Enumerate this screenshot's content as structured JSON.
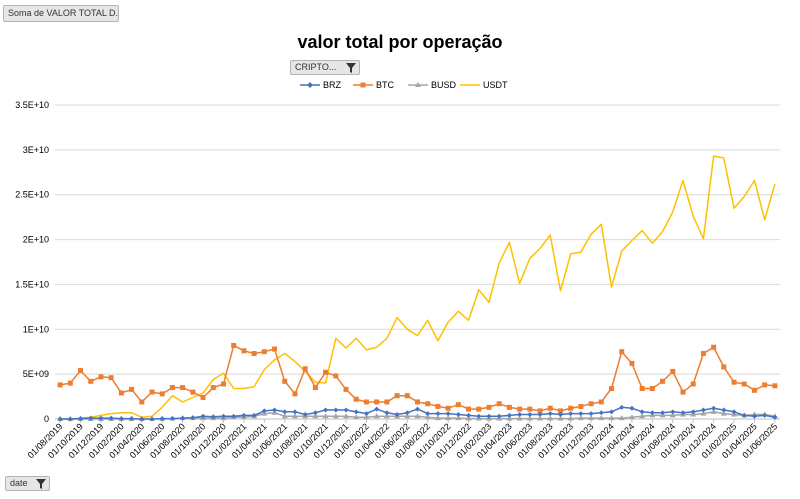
{
  "fields": {
    "value_field": "Soma de VALOR TOTAL D...",
    "series_field": "CRIPTO...",
    "axis_field": "date"
  },
  "colors": {
    "BRZ": "#4472C4",
    "BTC": "#ED7D31",
    "BUSD": "#A5A5A5",
    "USDT": "#FFC000",
    "grid": "#d9d9d9"
  },
  "chart_data": {
    "type": "line",
    "title": "valor total por operação",
    "xlabel": "",
    "ylabel": "",
    "ylim": [
      0,
      35000000000
    ],
    "y_ticks": [
      0,
      5000000000,
      10000000000,
      15000000000,
      20000000000,
      25000000000,
      30000000000,
      35000000000
    ],
    "y_tick_labels": [
      "0",
      "5E+09",
      "1E+10",
      "1.5E+10",
      "2E+10",
      "2.5E+10",
      "3E+10",
      "3.5E+10"
    ],
    "legend_position": "top",
    "categories": [
      "01/08/2019",
      "01/09/2019",
      "01/10/2019",
      "01/11/2019",
      "01/12/2019",
      "01/01/2020",
      "01/02/2020",
      "01/03/2020",
      "01/04/2020",
      "01/05/2020",
      "01/06/2020",
      "01/07/2020",
      "01/08/2020",
      "01/09/2020",
      "01/10/2020",
      "01/11/2020",
      "01/12/2020",
      "01/01/2021",
      "01/02/2021",
      "01/03/2021",
      "01/04/2021",
      "01/05/2021",
      "01/06/2021",
      "01/07/2021",
      "01/08/2021",
      "01/09/2021",
      "01/10/2021",
      "01/11/2021",
      "01/12/2021",
      "01/01/2022",
      "01/02/2022",
      "01/03/2022",
      "01/04/2022",
      "01/05/2022",
      "01/06/2022",
      "01/07/2022",
      "01/08/2022",
      "01/09/2022",
      "01/10/2022",
      "01/11/2022",
      "01/12/2022",
      "01/01/2023",
      "01/02/2023",
      "01/03/2023",
      "01/04/2023",
      "01/05/2023",
      "01/06/2023",
      "01/07/2023",
      "01/08/2023",
      "01/09/2023",
      "01/10/2023",
      "01/11/2023",
      "01/12/2023",
      "01/01/2024",
      "01/02/2024",
      "01/03/2024",
      "01/04/2024",
      "01/05/2024",
      "01/06/2024",
      "01/07/2024",
      "01/08/2024",
      "01/09/2024",
      "01/10/2024",
      "01/11/2024",
      "01/12/2024",
      "01/01/2025",
      "01/02/2025",
      "01/03/2025",
      "01/04/2025",
      "01/05/2025",
      "01/06/2025"
    ],
    "x_tick_labels": [
      "01/08/2019",
      "01/10/2019",
      "01/12/2019",
      "01/02/2020",
      "01/04/2020",
      "01/06/2020",
      "01/08/2020",
      "01/10/2020",
      "01/12/2020",
      "01/02/2021",
      "01/04/2021",
      "01/06/2021",
      "01/08/2021",
      "01/10/2021",
      "01/12/2021",
      "01/02/2022",
      "01/04/2022",
      "01/06/2022",
      "01/08/2022",
      "01/10/2022",
      "01/12/2022",
      "01/02/2023",
      "01/04/2023",
      "01/06/2023",
      "01/08/2023",
      "01/10/2023",
      "01/12/2023",
      "01/02/2024",
      "01/04/2024",
      "01/06/2024",
      "01/08/2024",
      "01/10/2024",
      "01/12/2024",
      "01/02/2025",
      "01/04/2025",
      "01/06/2025"
    ],
    "series": [
      {
        "name": "BRZ",
        "marker": "diamond",
        "values": [
          0.0,
          0.0,
          0.05,
          0.1,
          0.1,
          0.1,
          0.05,
          0.05,
          0.0,
          0.0,
          0.05,
          0.05,
          0.1,
          0.15,
          0.3,
          0.25,
          0.3,
          0.3,
          0.4,
          0.4,
          0.9,
          1.0,
          0.8,
          0.8,
          0.5,
          0.7,
          1.0,
          1.0,
          1.0,
          0.8,
          0.6,
          1.1,
          0.7,
          0.5,
          0.7,
          1.1,
          0.6,
          0.6,
          0.6,
          0.5,
          0.4,
          0.3,
          0.3,
          0.3,
          0.4,
          0.5,
          0.5,
          0.5,
          0.6,
          0.5,
          0.6,
          0.6,
          0.6,
          0.7,
          0.8,
          1.3,
          1.2,
          0.8,
          0.7,
          0.7,
          0.8,
          0.7,
          0.8,
          1.0,
          1.2,
          1.0,
          0.8,
          0.4,
          0.3,
          0.4,
          0.2
        ]
      },
      {
        "name": "BTC",
        "marker": "square",
        "values": [
          3.8,
          4.0,
          5.4,
          4.2,
          4.7,
          4.6,
          2.9,
          3.3,
          1.9,
          3.0,
          2.8,
          3.5,
          3.5,
          3.0,
          2.4,
          3.5,
          3.9,
          8.2,
          7.6,
          7.3,
          7.5,
          7.8,
          4.2,
          2.8,
          5.6,
          3.5,
          5.2,
          4.8,
          3.3,
          2.2,
          1.9,
          1.9,
          1.9,
          2.6,
          2.6,
          1.9,
          1.7,
          1.4,
          1.2,
          1.6,
          1.1,
          1.1,
          1.3,
          1.7,
          1.3,
          1.1,
          1.1,
          0.9,
          1.2,
          0.9,
          1.2,
          1.4,
          1.7,
          1.9,
          3.4,
          7.5,
          6.2,
          3.4,
          3.4,
          4.2,
          5.3,
          3.0,
          3.9,
          7.3,
          8.0,
          5.8,
          4.1,
          3.9,
          3.2,
          3.8,
          3.7
        ]
      },
      {
        "name": "BUSD",
        "marker": "triangle",
        "values": [
          0.0,
          0.0,
          0.0,
          0.0,
          0.0,
          0.0,
          0.0,
          0.0,
          0.0,
          0.0,
          0.0,
          0.05,
          0.1,
          0.1,
          0.1,
          0.1,
          0.1,
          0.2,
          0.2,
          0.3,
          0.6,
          0.7,
          0.3,
          0.3,
          0.3,
          0.3,
          0.3,
          0.3,
          0.3,
          0.2,
          0.2,
          0.3,
          0.3,
          0.3,
          0.3,
          0.3,
          0.2,
          0.1,
          0.1,
          0.1,
          0.05,
          0.05,
          0.05,
          0.05,
          0.05,
          0.05,
          0.05,
          0.05,
          0.05,
          0.05,
          0.05,
          0.1,
          0.1,
          0.1,
          0.1,
          0.1,
          0.2,
          0.3,
          0.4,
          0.4,
          0.4,
          0.5,
          0.5,
          0.6,
          0.8,
          0.6,
          0.5,
          0.4,
          0.5,
          0.5,
          0.3
        ]
      },
      {
        "name": "USDT",
        "marker": "none",
        "values": [
          0.0,
          0.0,
          0.1,
          0.2,
          0.4,
          0.6,
          0.7,
          0.7,
          0.2,
          0.3,
          1.3,
          2.6,
          1.9,
          2.4,
          2.9,
          4.4,
          5.1,
          3.4,
          3.4,
          3.6,
          5.5,
          6.6,
          7.3,
          6.4,
          5.3,
          4.1,
          4.0,
          9.0,
          7.9,
          9.0,
          7.7,
          8.0,
          9.0,
          11.3,
          10.0,
          9.3,
          11.0,
          8.7,
          10.8,
          12.0,
          11.0,
          14.4,
          13.0,
          17.4,
          19.7,
          15.1,
          17.9,
          19.0,
          20.5,
          14.3,
          18.4,
          18.6,
          20.6,
          21.7,
          14.7,
          18.7,
          19.9,
          21.0,
          19.6,
          20.9,
          23.1,
          26.6,
          22.6,
          20.1,
          29.3,
          29.1,
          23.5,
          24.8,
          26.6,
          22.2,
          26.2
        ]
      }
    ],
    "value_unit_note": "values in units of 1E+09"
  }
}
